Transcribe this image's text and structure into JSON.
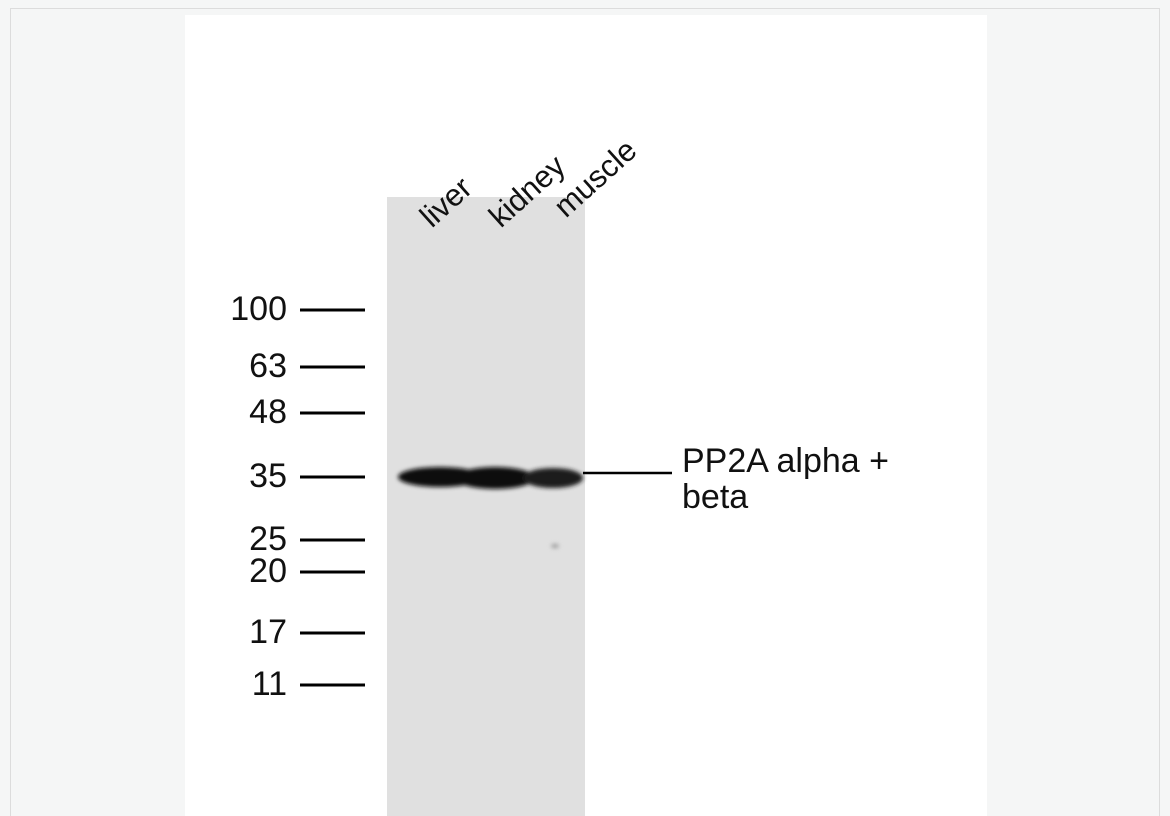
{
  "lanes": [
    "liver",
    "kidney",
    "muscle"
  ],
  "markers": [
    100,
    63,
    48,
    35,
    25,
    20,
    17,
    11
  ],
  "band_label": "PP2A alpha + beta"
}
